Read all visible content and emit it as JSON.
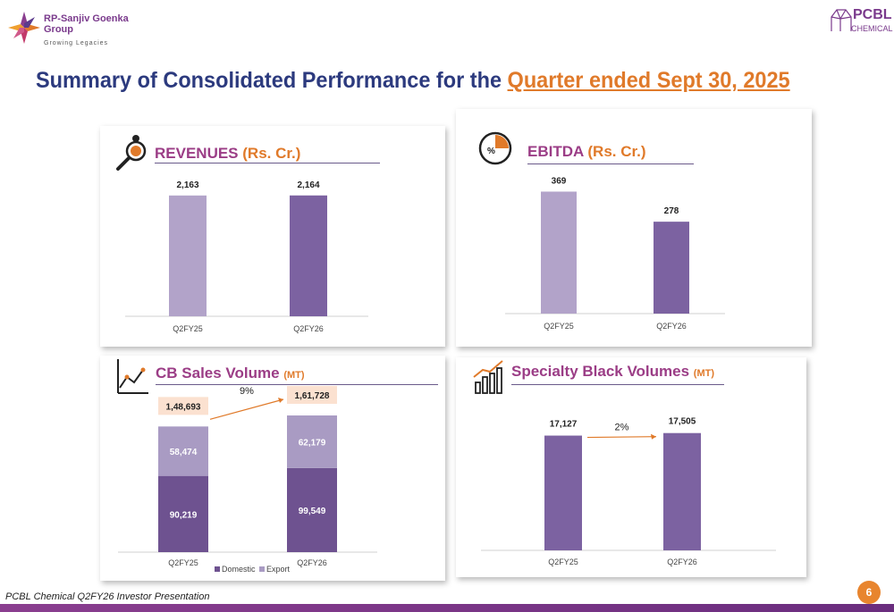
{
  "brand_left": {
    "name": "RP-Sanjiv Goenka Group",
    "tagline": "Growing Legacies"
  },
  "brand_right": {
    "name": "PCBL",
    "sub": "CHEMICAL"
  },
  "title": {
    "main": "Summary of Consolidated Performance for the ",
    "highlight": "Quarter ended Sept 30, 2025"
  },
  "footer": {
    "text": "PCBL Chemical Q2FY26 Investor Presentation",
    "page": "6"
  },
  "colors": {
    "light": "#b2a3c9",
    "dark": "#7c62a1",
    "domestic": "#6e5290",
    "export": "#a99bc3",
    "accent": "#e07a2a"
  },
  "chart_data": [
    {
      "id": "revenues",
      "type": "bar",
      "title": "REVENUES",
      "unit": "(Rs. Cr.)",
      "categories": [
        "Q2FY25",
        "Q2FY26"
      ],
      "values": [
        2163,
        2164
      ],
      "labels": [
        "2,163",
        "2,164"
      ],
      "ylim": [
        0,
        2400
      ]
    },
    {
      "id": "ebitda",
      "type": "bar",
      "title": "EBITDA",
      "unit": "(Rs. Cr.)",
      "categories": [
        "Q2FY25",
        "Q2FY26"
      ],
      "values": [
        369,
        278
      ],
      "labels": [
        "369",
        "278"
      ],
      "ylim": [
        0,
        400
      ]
    },
    {
      "id": "cb_sales",
      "type": "bar",
      "title": "CB Sales Volume",
      "unit": "(MT)",
      "categories": [
        "Q2FY25",
        "Q2FY26"
      ],
      "series": [
        {
          "name": "Domestic",
          "values": [
            90219,
            99549
          ],
          "labels": [
            "90,219",
            "99,549"
          ]
        },
        {
          "name": "Export",
          "values": [
            58474,
            62179
          ],
          "labels": [
            "58,474",
            "62,179"
          ]
        }
      ],
      "totals": [
        "1,48,693",
        "1,61,728"
      ],
      "growth": "9%",
      "ylim": [
        0,
        185000
      ]
    },
    {
      "id": "specialty",
      "type": "bar",
      "title": "Specialty Black Volumes",
      "unit": "(MT)",
      "categories": [
        "Q2FY25",
        "Q2FY26"
      ],
      "values": [
        17127,
        17505
      ],
      "labels": [
        "17,127",
        "17,505"
      ],
      "growth": "2%",
      "ylim": [
        0,
        22000
      ]
    }
  ]
}
